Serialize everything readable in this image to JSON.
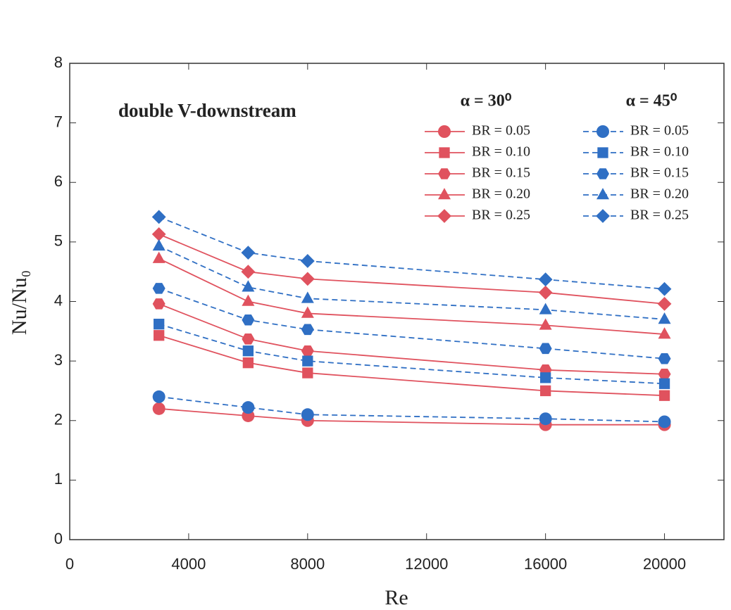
{
  "chart_data": {
    "type": "line",
    "annotation": "double V-downstream",
    "x_label": "Re",
    "y_label": "Nu/Nu₀",
    "xlim": [
      0,
      22000
    ],
    "xticks": [
      0,
      4000,
      8000,
      12000,
      16000,
      20000
    ],
    "ylim": [
      0,
      8
    ],
    "yticks": [
      0,
      1,
      2,
      3,
      4,
      5,
      6,
      7,
      8
    ],
    "legend_titles": [
      "α = 30⁰",
      "α = 45⁰"
    ],
    "x": [
      3000,
      6000,
      8000,
      16000,
      20000
    ],
    "series": [
      {
        "name": "BR = 0.05",
        "color": "#e0525e",
        "line_style": "solid",
        "marker": "circle",
        "values": [
          2.2,
          2.08,
          2.0,
          1.93,
          1.93
        ]
      },
      {
        "name": "BR = 0.10",
        "color": "#e0525e",
        "line_style": "solid",
        "marker": "square",
        "values": [
          3.43,
          2.97,
          2.8,
          2.5,
          2.42
        ]
      },
      {
        "name": "BR = 0.15",
        "color": "#e0525e",
        "line_style": "solid",
        "marker": "hexagon",
        "values": [
          3.96,
          3.37,
          3.17,
          2.85,
          2.78
        ]
      },
      {
        "name": "BR = 0.20",
        "color": "#e0525e",
        "line_style": "solid",
        "marker": "triangle",
        "values": [
          4.72,
          4.0,
          3.8,
          3.6,
          3.45
        ]
      },
      {
        "name": "BR = 0.25",
        "color": "#e0525e",
        "line_style": "solid",
        "marker": "diamond",
        "values": [
          5.13,
          4.5,
          4.38,
          4.15,
          3.96
        ]
      },
      {
        "name": "BR = 0.05",
        "color": "#2f6fc4",
        "line_style": "dashed",
        "marker": "circle",
        "values": [
          2.4,
          2.22,
          2.1,
          2.03,
          1.98
        ]
      },
      {
        "name": "BR = 0.10",
        "color": "#2f6fc4",
        "line_style": "dashed",
        "marker": "square",
        "values": [
          3.62,
          3.17,
          3.0,
          2.72,
          2.62
        ]
      },
      {
        "name": "BR = 0.15",
        "color": "#2f6fc4",
        "line_style": "dashed",
        "marker": "hexagon",
        "values": [
          4.22,
          3.69,
          3.53,
          3.21,
          3.04
        ]
      },
      {
        "name": "BR = 0.20",
        "color": "#2f6fc4",
        "line_style": "dashed",
        "marker": "triangle",
        "values": [
          4.93,
          4.24,
          4.05,
          3.86,
          3.7
        ]
      },
      {
        "name": "BR = 0.25",
        "color": "#2f6fc4",
        "line_style": "dashed",
        "marker": "diamond",
        "values": [
          5.42,
          4.82,
          4.68,
          4.37,
          4.21
        ]
      }
    ]
  }
}
